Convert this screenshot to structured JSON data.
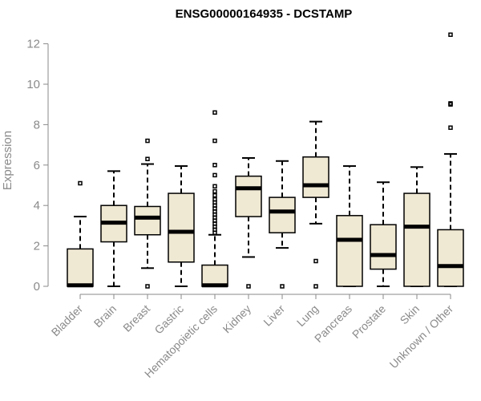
{
  "chart_data": {
    "type": "boxplot",
    "title": "ENSG00000164935 - DCSTAMP",
    "xlabel": "",
    "ylabel": "Expression",
    "ylim": [
      0,
      12.5
    ],
    "yticks": [
      0,
      2,
      4,
      6,
      8,
      10,
      12
    ],
    "grid": false,
    "box_fill": "#efe8d2",
    "box_stroke": "#000000",
    "axis_color": "#8a8a8a",
    "categories": [
      "Bladder",
      "Brain",
      "Breast",
      "Gastric",
      "Hematopoietic cells",
      "Kidney",
      "Liver",
      "Lung",
      "Pancreas",
      "Prostate",
      "Skin",
      "Unknown / Other"
    ],
    "boxes": [
      {
        "category": "Bladder",
        "whisker_low": 0,
        "q1": 0,
        "median": 0.05,
        "q3": 1.85,
        "whisker_high": 3.45,
        "outliers": [
          5.1
        ]
      },
      {
        "category": "Brain",
        "whisker_low": 0,
        "q1": 2.2,
        "median": 3.15,
        "q3": 4.0,
        "whisker_high": 5.7,
        "outliers": []
      },
      {
        "category": "Breast",
        "whisker_low": 0.9,
        "q1": 2.55,
        "median": 3.4,
        "q3": 3.95,
        "whisker_high": 6.05,
        "outliers": [
          0,
          6.3,
          7.2
        ]
      },
      {
        "category": "Gastric",
        "whisker_low": 0,
        "q1": 1.2,
        "median": 2.7,
        "q3": 4.6,
        "whisker_high": 5.95,
        "outliers": []
      },
      {
        "category": "Hematopoietic cells",
        "whisker_low": 0,
        "q1": 0,
        "median": 0.05,
        "q3": 1.05,
        "whisker_high": 2.55,
        "outliers": [
          2.65,
          2.8,
          2.95,
          3.1,
          3.25,
          3.4,
          3.55,
          3.7,
          3.85,
          4.0,
          4.15,
          4.3,
          4.5,
          4.7,
          4.95,
          5.5,
          6.0,
          7.2,
          8.6
        ]
      },
      {
        "category": "Kidney",
        "whisker_low": 1.45,
        "q1": 3.45,
        "median": 4.85,
        "q3": 5.45,
        "whisker_high": 6.35,
        "outliers": [
          0
        ]
      },
      {
        "category": "Liver",
        "whisker_low": 1.9,
        "q1": 2.65,
        "median": 3.7,
        "q3": 4.4,
        "whisker_high": 6.2,
        "outliers": [
          0
        ]
      },
      {
        "category": "Lung",
        "whisker_low": 3.1,
        "q1": 4.4,
        "median": 5.0,
        "q3": 6.4,
        "whisker_high": 8.15,
        "outliers": [
          0,
          1.25
        ]
      },
      {
        "category": "Pancreas",
        "whisker_low": 0,
        "q1": 0,
        "median": 2.3,
        "q3": 3.5,
        "whisker_high": 5.95,
        "outliers": []
      },
      {
        "category": "Prostate",
        "whisker_low": 0,
        "q1": 0.85,
        "median": 1.55,
        "q3": 3.05,
        "whisker_high": 5.15,
        "outliers": []
      },
      {
        "category": "Skin",
        "whisker_low": 0,
        "q1": 0,
        "median": 2.95,
        "q3": 4.6,
        "whisker_high": 5.9,
        "outliers": []
      },
      {
        "category": "Unknown / Other",
        "whisker_low": 0,
        "q1": 0,
        "median": 1.0,
        "q3": 2.8,
        "whisker_high": 6.55,
        "outliers": [
          7.85,
          9.0,
          9.05,
          12.45
        ]
      }
    ]
  }
}
